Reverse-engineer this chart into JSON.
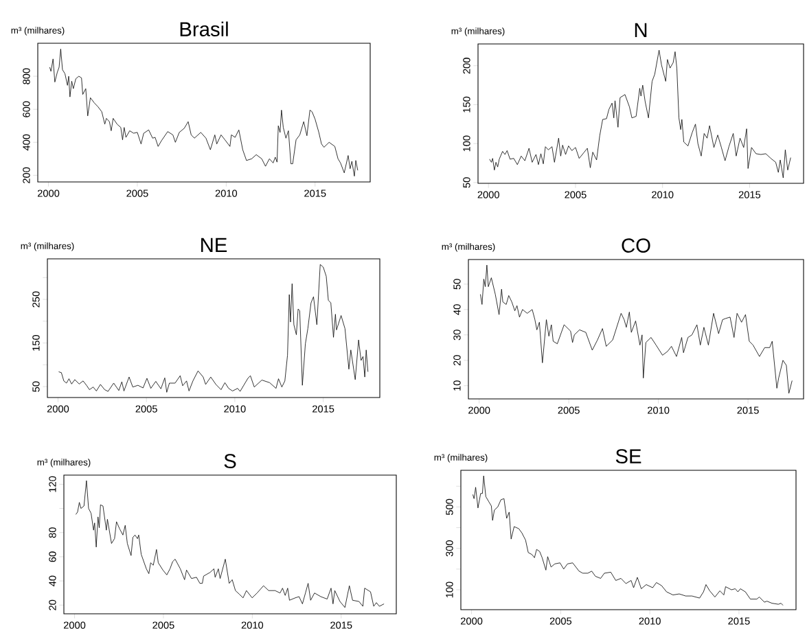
{
  "chart_data": [
    {
      "type": "line",
      "title": "Brasil",
      "ylabel": "m³ (milhares)",
      "color": "#000000",
      "xlim": [
        1999.4,
        2018.1
      ],
      "ylim": [
        160,
        1000
      ],
      "xticks": [
        2000,
        2005,
        2010,
        2015
      ],
      "yticks": [
        200,
        400,
        600,
        800
      ],
      "x": [
        2000.07,
        2000.14,
        2000.26,
        2000.36,
        2000.5,
        2000.6,
        2000.69,
        2000.79,
        2000.93,
        2001.07,
        2001.14,
        2001.21,
        2001.31,
        2001.4,
        2001.54,
        2001.71,
        2001.86,
        2001.93,
        2002.1,
        2002.21,
        2002.36,
        2002.57,
        2002.79,
        2003.0,
        2003.17,
        2003.26,
        2003.43,
        2003.53,
        2003.64,
        2003.86,
        2004.07,
        2004.17,
        2004.26,
        2004.36,
        2004.57,
        2004.79,
        2005.0,
        2005.21,
        2005.36,
        2005.64,
        2005.86,
        2006.0,
        2006.17,
        2006.36,
        2006.71,
        2007.0,
        2007.14,
        2007.36,
        2007.64,
        2007.86,
        2008.03,
        2008.21,
        2008.57,
        2008.86,
        2009.11,
        2009.36,
        2009.47,
        2009.71,
        2009.93,
        2010.21,
        2010.29,
        2010.5,
        2010.71,
        2010.93,
        2011.14,
        2011.43,
        2011.69,
        2012.0,
        2012.21,
        2012.43,
        2012.64,
        2012.76,
        2012.86,
        2012.93,
        2013.03,
        2013.11,
        2013.21,
        2013.36,
        2013.5,
        2013.64,
        2013.74,
        2013.93,
        2014.14,
        2014.36,
        2014.54,
        2014.71,
        2014.83,
        2015.0,
        2015.21,
        2015.36,
        2015.5,
        2015.79,
        2016.11,
        2016.29,
        2016.43,
        2016.64,
        2016.86,
        2016.97,
        2017.07,
        2017.21,
        2017.29,
        2017.4
      ],
      "values": [
        855,
        830,
        905,
        765,
        825,
        855,
        965,
        840,
        815,
        745,
        800,
        675,
        770,
        725,
        785,
        800,
        790,
        690,
        725,
        560,
        670,
        640,
        615,
        585,
        510,
        545,
        525,
        470,
        545,
        510,
        490,
        415,
        490,
        430,
        470,
        455,
        460,
        390,
        455,
        475,
        425,
        430,
        375,
        410,
        465,
        445,
        400,
        460,
        485,
        525,
        445,
        425,
        460,
        425,
        355,
        445,
        390,
        445,
        415,
        375,
        445,
        430,
        475,
        355,
        290,
        300,
        325,
        300,
        255,
        300,
        275,
        310,
        280,
        500,
        460,
        595,
        490,
        425,
        470,
        270,
        270,
        415,
        445,
        525,
        440,
        595,
        585,
        540,
        460,
        390,
        370,
        400,
        375,
        300,
        275,
        215,
        320,
        240,
        285,
        195,
        290,
        230
      ]
    },
    {
      "type": "line",
      "title": "N",
      "ylabel": "m³ (milhares)",
      "color": "#000000",
      "xlim": [
        1999.4,
        2018.1
      ],
      "ylim": [
        49,
        228
      ],
      "xticks": [
        2000,
        2005,
        2010,
        2015
      ],
      "yticks": [
        50,
        100,
        150,
        200
      ],
      "x": [
        2000.06,
        2000.17,
        2000.24,
        2000.34,
        2000.43,
        2000.53,
        2000.62,
        2000.81,
        2000.95,
        2001.07,
        2001.24,
        2001.45,
        2001.66,
        2001.88,
        2002.09,
        2002.33,
        2002.51,
        2002.73,
        2002.87,
        2003.01,
        2003.15,
        2003.27,
        2003.44,
        2003.65,
        2003.79,
        2004.03,
        2004.15,
        2004.26,
        2004.43,
        2004.6,
        2004.79,
        2005.0,
        2005.21,
        2005.5,
        2005.68,
        2005.85,
        2005.99,
        2006.21,
        2006.39,
        2006.56,
        2006.78,
        2006.92,
        2007.1,
        2007.2,
        2007.27,
        2007.44,
        2007.56,
        2007.84,
        2008.1,
        2008.24,
        2008.48,
        2008.69,
        2008.76,
        2008.86,
        2009.0,
        2009.19,
        2009.4,
        2009.55,
        2009.8,
        2009.94,
        2010.18,
        2010.28,
        2010.43,
        2010.61,
        2010.72,
        2010.82,
        2010.94,
        2011.04,
        2011.11,
        2011.22,
        2011.46,
        2011.7,
        2011.89,
        2012.03,
        2012.22,
        2012.39,
        2012.56,
        2012.7,
        2012.95,
        2013.17,
        2013.38,
        2013.59,
        2013.81,
        2014.06,
        2014.23,
        2014.45,
        2014.66,
        2014.83,
        2014.91,
        2015.11,
        2015.37,
        2015.65,
        2015.93,
        2016.22,
        2016.5,
        2016.65,
        2016.76,
        2016.93,
        2017.05,
        2017.19,
        2017.36
      ],
      "values": [
        80,
        76,
        81,
        66,
        76,
        70,
        80,
        90,
        86,
        91,
        80,
        81,
        73,
        84,
        78,
        94,
        76,
        86,
        73,
        87,
        74,
        96,
        92,
        96,
        76,
        107,
        84,
        98,
        86,
        97,
        91,
        95,
        81,
        89,
        94,
        69,
        89,
        79,
        110,
        131,
        132,
        144,
        152,
        133,
        155,
        121,
        159,
        163,
        147,
        133,
        135,
        171,
        161,
        175,
        154,
        133,
        180,
        189,
        220,
        201,
        180,
        208,
        197,
        204,
        218,
        197,
        133,
        118,
        131,
        102,
        97,
        114,
        125,
        100,
        84,
        113,
        107,
        123,
        95,
        111,
        95,
        78,
        96,
        113,
        84,
        107,
        95,
        119,
        68,
        95,
        87,
        86,
        87,
        81,
        76,
        63,
        79,
        56,
        92,
        66,
        82
      ]
    },
    {
      "type": "line",
      "title": "NE",
      "ylabel": "m³ (milhares)",
      "color": "#000000",
      "xlim": [
        1999.4,
        2018.2
      ],
      "ylim": [
        25,
        343
      ],
      "xticks": [
        2000,
        2005,
        2010,
        2015
      ],
      "yticks": [
        50,
        {
          "value": 100,
          "label": null
        },
        150,
        {
          "value": 200,
          "label": null
        },
        250,
        {
          "value": 300,
          "label": null
        }
      ],
      "x": [
        2000.04,
        2000.19,
        2000.33,
        2000.48,
        2000.62,
        2000.77,
        2000.95,
        2001.2,
        2001.42,
        2001.63,
        2001.78,
        2001.99,
        2002.17,
        2002.4,
        2002.64,
        2002.83,
        2003.15,
        2003.44,
        2003.61,
        2003.73,
        2004.02,
        2004.23,
        2004.52,
        2004.81,
        2005.03,
        2005.25,
        2005.53,
        2005.82,
        2006.04,
        2006.15,
        2006.3,
        2006.62,
        2006.91,
        2007.05,
        2007.27,
        2007.41,
        2007.63,
        2007.92,
        2008.21,
        2008.35,
        2008.64,
        2008.93,
        2009.22,
        2009.44,
        2009.65,
        2009.87,
        2010.16,
        2010.3,
        2010.74,
        2010.88,
        2011.1,
        2011.53,
        2011.97,
        2012.33,
        2012.47,
        2012.66,
        2012.83,
        2012.98,
        2013.08,
        2013.15,
        2013.24,
        2013.34,
        2013.48,
        2013.58,
        2013.67,
        2013.82,
        2013.99,
        2014.13,
        2014.31,
        2014.45,
        2014.64,
        2014.83,
        2015.0,
        2015.17,
        2015.29,
        2015.43,
        2015.58,
        2015.69,
        2015.75,
        2016.01,
        2016.23,
        2016.45,
        2016.56,
        2016.81,
        2017.0,
        2017.14,
        2017.25,
        2017.35,
        2017.43,
        2017.53
      ],
      "values": [
        84,
        82,
        63,
        58,
        68,
        56,
        66,
        56,
        63,
        52,
        43,
        49,
        40,
        55,
        43,
        39,
        58,
        41,
        61,
        40,
        72,
        49,
        53,
        47,
        69,
        46,
        62,
        45,
        70,
        37,
        58,
        58,
        75,
        52,
        63,
        40,
        63,
        86,
        72,
        55,
        72,
        55,
        43,
        59,
        46,
        40,
        46,
        39,
        69,
        75,
        49,
        65,
        59,
        46,
        68,
        49,
        63,
        122,
        261,
        198,
        286,
        192,
        169,
        228,
        224,
        53,
        148,
        183,
        242,
        256,
        192,
        330,
        324,
        303,
        248,
        242,
        163,
        216,
        180,
        213,
        183,
        90,
        134,
        66,
        157,
        110,
        119,
        72,
        134,
        84
      ]
    },
    {
      "type": "line",
      "title": "CO",
      "ylabel": "m³ (milhares)",
      "color": "#000000",
      "xlim": [
        1999.4,
        2018.1
      ],
      "ylim": [
        4.8,
        59.7
      ],
      "xticks": [
        2000,
        2005,
        2010,
        2015
      ],
      "yticks": [
        10,
        20,
        30,
        40,
        50
      ],
      "x": [
        2000.07,
        2000.16,
        2000.26,
        2000.34,
        2000.43,
        2000.51,
        2000.68,
        2000.9,
        2001.11,
        2001.25,
        2001.32,
        2001.51,
        2001.65,
        2001.82,
        2001.99,
        2002.11,
        2002.25,
        2002.42,
        2002.68,
        2002.96,
        2003.11,
        2003.22,
        2003.36,
        2003.53,
        2003.75,
        2003.89,
        2004.03,
        2004.13,
        2004.36,
        2004.74,
        2005.1,
        2005.21,
        2005.31,
        2005.6,
        2005.95,
        2006.31,
        2006.6,
        2006.88,
        2007.09,
        2007.45,
        2007.92,
        2008.09,
        2008.21,
        2008.38,
        2008.49,
        2008.73,
        2008.97,
        2009.09,
        2009.16,
        2009.3,
        2009.59,
        2009.87,
        2010.23,
        2010.51,
        2010.73,
        2011.01,
        2011.3,
        2011.4,
        2011.65,
        2011.87,
        2012.15,
        2012.34,
        2012.54,
        2012.79,
        2013.08,
        2013.36,
        2013.58,
        2013.76,
        2014.0,
        2014.22,
        2014.39,
        2014.64,
        2014.86,
        2015.07,
        2015.28,
        2015.64,
        2015.93,
        2016.21,
        2016.35,
        2016.61,
        2016.71,
        2016.95,
        2017.14,
        2017.28,
        2017.46
      ],
      "values": [
        46,
        42,
        52,
        49,
        57.5,
        49,
        52.5,
        46,
        38,
        48,
        43,
        42,
        45.5,
        43,
        39.5,
        41.5,
        37,
        40,
        38.5,
        40,
        36,
        32,
        35,
        19,
        36,
        29.5,
        34,
        27.5,
        26.5,
        34,
        31.5,
        27,
        30,
        32,
        31,
        24,
        28,
        32.5,
        25.5,
        28,
        38.5,
        36,
        33,
        39,
        31,
        35.5,
        26,
        30,
        13,
        27,
        29,
        26,
        22,
        23.5,
        25.5,
        21.5,
        29,
        23,
        29,
        30,
        34,
        26,
        33,
        26,
        38.5,
        30.5,
        36,
        36.5,
        37,
        29,
        38.5,
        35,
        38,
        27.5,
        26,
        21.5,
        25,
        25,
        27.5,
        9,
        13,
        20,
        18,
        7,
        12
      ]
    },
    {
      "type": "line",
      "title": "S",
      "ylabel": "m³ (milhares)",
      "color": "#000000",
      "xlim": [
        1999.4,
        2018.1
      ],
      "ylim": [
        12.8,
        127.6
      ],
      "xticks": [
        2000,
        2005,
        2010,
        2015
      ],
      "yticks": [
        20,
        40,
        60,
        80,
        {
          "value": 100,
          "label": null
        },
        120
      ],
      "x": [
        2000.07,
        2000.17,
        2000.27,
        2000.36,
        2000.53,
        2000.67,
        2000.79,
        2000.93,
        2001.07,
        2001.13,
        2001.22,
        2001.32,
        2001.39,
        2001.46,
        2001.6,
        2001.79,
        2001.85,
        2002.08,
        2002.25,
        2002.36,
        2002.54,
        2002.72,
        2002.85,
        2002.97,
        2003.18,
        2003.28,
        2003.4,
        2003.54,
        2003.61,
        2003.75,
        2004.04,
        2004.18,
        2004.28,
        2004.43,
        2004.61,
        2004.71,
        2004.97,
        2005.19,
        2005.37,
        2005.52,
        2005.66,
        2005.95,
        2006.19,
        2006.3,
        2006.58,
        2006.86,
        2007.05,
        2007.19,
        2007.26,
        2007.62,
        2007.84,
        2007.91,
        2008.09,
        2008.19,
        2008.48,
        2008.7,
        2008.87,
        2009.05,
        2009.27,
        2009.48,
        2009.67,
        2009.99,
        2010.27,
        2010.63,
        2010.92,
        2011.28,
        2011.56,
        2011.7,
        2011.85,
        2011.99,
        2012.09,
        2012.42,
        2012.63,
        2012.82,
        2012.99,
        2013.14,
        2013.28,
        2013.5,
        2013.85,
        2014.21,
        2014.43,
        2014.54,
        2014.64,
        2014.93,
        2015.21,
        2015.46,
        2015.64,
        2016.0,
        2016.22,
        2016.32,
        2016.65,
        2016.83,
        2016.98,
        2017.15,
        2017.41
      ],
      "values": [
        95,
        97,
        105,
        100,
        102,
        123,
        100,
        96,
        82,
        88,
        68,
        93,
        84,
        103,
        102,
        82,
        91,
        71,
        75,
        89,
        83,
        78,
        86,
        71,
        61,
        76,
        78,
        75,
        78,
        62,
        50,
        46,
        55,
        53,
        66,
        55,
        49,
        45,
        50,
        56,
        58,
        50,
        41,
        49,
        42,
        43,
        38,
        38,
        44,
        47,
        50,
        43,
        50,
        42,
        58,
        38,
        41,
        32,
        29,
        26,
        32,
        26,
        30,
        36,
        32,
        32,
        30,
        34,
        28,
        34,
        24,
        26,
        27,
        21,
        30,
        38,
        24,
        30,
        27,
        25,
        34,
        21,
        32,
        23,
        18,
        36,
        24,
        23,
        19,
        34,
        31,
        19,
        22,
        19,
        21
      ]
    },
    {
      "type": "line",
      "title": "SE",
      "ylabel": "m³ (milhares)",
      "color": "#000000",
      "xlim": [
        1999.4,
        2018.2
      ],
      "ylim": [
        4,
        677
      ],
      "xticks": [
        2000,
        2005,
        2010,
        2015
      ],
      "yticks": [
        100,
        {
          "value": 200,
          "label": null
        },
        300,
        {
          "value": 400,
          "label": null
        },
        500,
        {
          "value": 600,
          "label": null
        }
      ],
      "x": [
        2000.07,
        2000.14,
        2000.23,
        2000.36,
        2000.51,
        2000.61,
        2000.68,
        2000.8,
        2000.97,
        2001.11,
        2001.18,
        2001.28,
        2001.47,
        2001.65,
        2001.82,
        2001.97,
        2002.11,
        2002.22,
        2002.39,
        2002.65,
        2002.82,
        2003.03,
        2003.18,
        2003.39,
        2003.53,
        2003.65,
        2003.82,
        2003.96,
        2004.17,
        2004.27,
        2004.46,
        2004.67,
        2004.96,
        2005.17,
        2005.38,
        2005.67,
        2006.03,
        2006.24,
        2006.52,
        2006.74,
        2006.95,
        2007.24,
        2007.45,
        2007.81,
        2008.09,
        2008.38,
        2008.66,
        2008.95,
        2009.09,
        2009.3,
        2009.52,
        2009.8,
        2010.16,
        2010.37,
        2010.66,
        2010.94,
        2011.3,
        2011.65,
        2012.01,
        2012.36,
        2012.79,
        2013.01,
        2013.15,
        2013.36,
        2013.65,
        2013.93,
        2014.15,
        2014.25,
        2014.58,
        2014.79,
        2014.94,
        2015.08,
        2015.36,
        2015.64,
        2016.0,
        2016.14,
        2016.43,
        2016.57,
        2016.85,
        2017.21,
        2017.36,
        2017.47
      ],
      "values": [
        560,
        540,
        595,
        495,
        565,
        565,
        650,
        550,
        525,
        505,
        435,
        485,
        500,
        535,
        540,
        445,
        475,
        345,
        405,
        395,
        375,
        340,
        280,
        270,
        255,
        295,
        285,
        255,
        195,
        260,
        210,
        225,
        230,
        200,
        225,
        230,
        190,
        180,
        180,
        190,
        165,
        155,
        180,
        185,
        145,
        155,
        130,
        145,
        110,
        160,
        105,
        125,
        110,
        135,
        120,
        90,
        75,
        80,
        70,
        70,
        60,
        90,
        125,
        95,
        65,
        95,
        75,
        115,
        100,
        105,
        90,
        105,
        90,
        55,
        55,
        65,
        40,
        45,
        35,
        30,
        35,
        25
      ]
    }
  ]
}
